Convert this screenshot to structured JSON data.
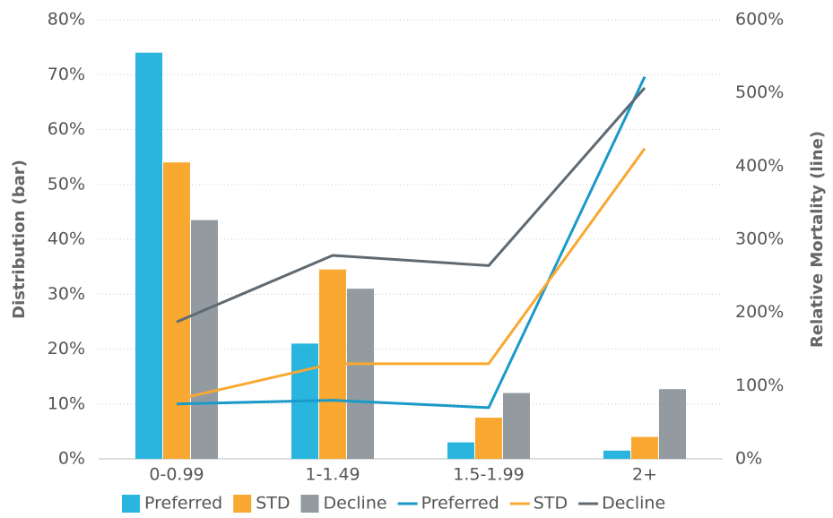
{
  "chart_data": {
    "type": "bar",
    "categories": [
      "0-0.99",
      "1-1.49",
      "1.5-1.99",
      "2+"
    ],
    "ylabel": "Distribution (bar)",
    "y2label": "Relative Mortality (line)",
    "ylim": [
      0,
      80
    ],
    "yticks": [
      {
        "value": 0,
        "label": "0%"
      },
      {
        "value": 10,
        "label": "10%"
      },
      {
        "value": 20,
        "label": "20%"
      },
      {
        "value": 30,
        "label": "30%"
      },
      {
        "value": 40,
        "label": "40%"
      },
      {
        "value": 50,
        "label": "50%"
      },
      {
        "value": 60,
        "label": "60%"
      },
      {
        "value": 70,
        "label": "70%"
      },
      {
        "value": 80,
        "label": "80%"
      }
    ],
    "y2lim": [
      0,
      600
    ],
    "y2ticks": [
      {
        "value": 0,
        "label": "0%"
      },
      {
        "value": 100,
        "label": "100%"
      },
      {
        "value": 200,
        "label": "200%"
      },
      {
        "value": 300,
        "label": "300%"
      },
      {
        "value": 400,
        "label": "400%"
      },
      {
        "value": 500,
        "label": "500%"
      },
      {
        "value": 600,
        "label": "600%"
      }
    ],
    "grid": true,
    "legend": "bottom",
    "series": [
      {
        "name": "Preferred",
        "type": "bar",
        "color": "#29b5de",
        "values": [
          74,
          21,
          3,
          1.5
        ]
      },
      {
        "name": "STD",
        "type": "bar",
        "color": "#f9a832",
        "values": [
          54,
          34.5,
          7.5,
          4
        ]
      },
      {
        "name": "Decline",
        "type": "bar",
        "color": "#939ba1",
        "values": [
          43.5,
          31,
          12,
          12.7
        ]
      },
      {
        "name": "Preferred",
        "type": "line",
        "axis": "y2",
        "color": "#1a9ac9",
        "values": [
          75,
          80,
          70,
          522
        ]
      },
      {
        "name": "STD",
        "type": "line",
        "axis": "y2",
        "color": "#f9a832",
        "values": [
          81,
          130,
          130,
          424
        ]
      },
      {
        "name": "Decline",
        "type": "line",
        "axis": "y2",
        "color": "#5f6a72",
        "values": [
          187,
          278,
          264,
          507
        ]
      }
    ]
  }
}
